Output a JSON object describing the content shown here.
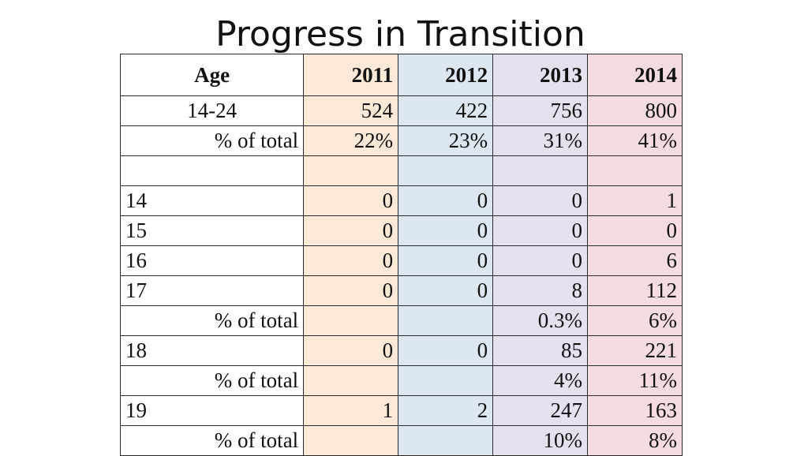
{
  "title": "Progress in Transition",
  "table": {
    "header": {
      "age": "Age",
      "years": [
        "2011",
        "2012",
        "2013",
        "2014"
      ]
    },
    "rows": [
      {
        "age": "14-24",
        "values": [
          "524",
          "422",
          "756",
          "800"
        ]
      },
      {
        "age": "% of total",
        "values": [
          "22%",
          "23%",
          "31%",
          "41%"
        ]
      },
      {
        "age": "",
        "values": [
          "",
          "",
          "",
          ""
        ]
      },
      {
        "age": "14",
        "values": [
          "0",
          "0",
          "0",
          "1"
        ]
      },
      {
        "age": "15",
        "values": [
          "0",
          "0",
          "0",
          "0"
        ]
      },
      {
        "age": "16",
        "values": [
          "0",
          "0",
          "0",
          "6"
        ]
      },
      {
        "age": "17",
        "values": [
          "0",
          "0",
          "8",
          "112"
        ]
      },
      {
        "age": "% of total",
        "values": [
          "",
          "",
          "0.3%",
          "6%"
        ]
      },
      {
        "age": "18",
        "values": [
          "0",
          "0",
          "85",
          "221"
        ]
      },
      {
        "age": "% of total",
        "values": [
          "",
          "",
          "4%",
          "11%"
        ]
      },
      {
        "age": "19",
        "values": [
          "1",
          "2",
          "247",
          "163"
        ]
      },
      {
        "age": "% of total",
        "values": [
          "",
          "",
          "10%",
          "8%"
        ]
      }
    ]
  },
  "colors": {
    "col_2011": "#fde9d8",
    "col_2012": "#dde7f1",
    "col_2013": "#e6e0ef",
    "col_2014": "#f4dcdf"
  }
}
